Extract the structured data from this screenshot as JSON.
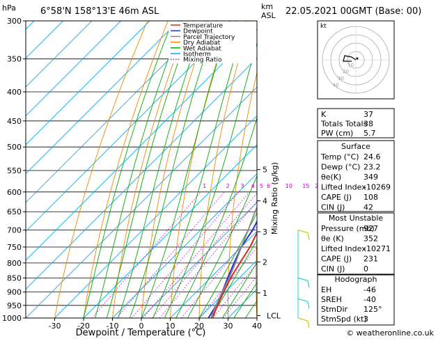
{
  "header": {
    "hpa_unit": "hPa",
    "location": "6°58'N 158°13'E 46m ASL",
    "km_unit": "km",
    "asl_unit": "ASL",
    "datetime": "22.05.2021 00GMT (Base: 00)"
  },
  "chart_data": {
    "type": "line",
    "title": "",
    "xlabel": "Dewpoint / Temperature (°C)",
    "ylabel": "hPa",
    "mixing_ratio_axis_label": "Mixing Ratio (g/kg)",
    "x_ticks": [
      -30,
      -20,
      -10,
      0,
      10,
      20,
      30,
      40
    ],
    "y_ticks": [
      300,
      350,
      400,
      450,
      500,
      550,
      600,
      650,
      700,
      750,
      800,
      850,
      900,
      950,
      1000
    ],
    "km_ticks": [
      {
        "km": "1",
        "p": 903
      },
      {
        "km": "2",
        "p": 797
      },
      {
        "km": "3",
        "p": 705
      },
      {
        "km": "4",
        "p": 622
      },
      {
        "km": "5",
        "p": 548
      }
    ],
    "lcl_label": "LCL",
    "lcl_p": 990,
    "mixing_ratio_values": [
      "1",
      "2",
      "3",
      "4",
      "5",
      "6",
      "10",
      "15",
      "20",
      "25"
    ],
    "xlim": [
      -40,
      40
    ],
    "ylim": [
      1000,
      300
    ],
    "skew": 1.0,
    "legend": {
      "position": "top-right",
      "entries": [
        {
          "label": "Temperature",
          "color": "#dd2222",
          "style": "solid"
        },
        {
          "label": "Dewpoint",
          "color": "#2233cc",
          "style": "solid"
        },
        {
          "label": "Parcel Trajectory",
          "color": "#888888",
          "style": "solid"
        },
        {
          "label": "Dry Adiabat",
          "color": "#ee8800",
          "style": "solid"
        },
        {
          "label": "Wet Adiabat",
          "color": "#00aa00",
          "style": "solid"
        },
        {
          "label": "Isotherm",
          "color": "#00aaee",
          "style": "solid"
        },
        {
          "label": "Mixing Ratio",
          "color": "#cc00cc",
          "style": "dotted"
        }
      ]
    },
    "series": [
      {
        "name": "Temperature",
        "color": "#dd2222",
        "points": [
          [
            24.6,
            1000
          ],
          [
            22,
            950
          ],
          [
            19.5,
            900
          ],
          [
            17,
            850
          ],
          [
            15,
            800
          ],
          [
            13,
            750
          ],
          [
            10,
            700
          ],
          [
            7,
            650
          ],
          [
            3,
            600
          ],
          [
            -2,
            575
          ],
          [
            2,
            560
          ],
          [
            -1,
            500
          ],
          [
            -6,
            450
          ],
          [
            -12,
            400
          ],
          [
            -18,
            350
          ],
          [
            -26,
            300
          ]
        ]
      },
      {
        "name": "Dewpoint",
        "color": "#2233cc",
        "points": [
          [
            23.2,
            1000
          ],
          [
            21.5,
            950
          ],
          [
            19,
            900
          ],
          [
            16,
            850
          ],
          [
            13,
            800
          ],
          [
            10,
            750
          ],
          [
            8,
            700
          ],
          [
            5,
            650
          ],
          [
            0,
            610
          ],
          [
            -1,
            580
          ],
          [
            -2,
            550
          ],
          [
            -5,
            500
          ],
          [
            -9,
            450
          ],
          [
            -15,
            400
          ],
          [
            -22,
            350
          ],
          [
            -30,
            300
          ]
        ]
      },
      {
        "name": "Parcel Trajectory",
        "color": "#888888",
        "points": [
          [
            24.6,
            1000
          ],
          [
            23.5,
            990
          ],
          [
            21.5,
            950
          ],
          [
            19,
            900
          ],
          [
            16.5,
            850
          ],
          [
            13.5,
            800
          ],
          [
            10,
            750
          ],
          [
            6.5,
            700
          ],
          [
            2.5,
            650
          ],
          [
            -1,
            600
          ],
          [
            -5,
            550
          ],
          [
            -9.5,
            500
          ],
          [
            -15,
            450
          ],
          [
            -21,
            400
          ],
          [
            -28,
            350
          ],
          [
            -36,
            300
          ]
        ]
      }
    ]
  },
  "hodograph": {
    "label": "kt",
    "ring_labels": [
      "10",
      "20",
      "30",
      "40"
    ]
  },
  "indices": {
    "rows": [
      {
        "label": "K",
        "value": "37"
      },
      {
        "label": "Totals Totals",
        "value": "38"
      },
      {
        "label": "PW (cm)",
        "value": "5.7"
      }
    ]
  },
  "surface": {
    "title": "Surface",
    "rows": [
      {
        "label": "Temp (°C)",
        "value": "24.6"
      },
      {
        "label": "Dewp (°C)",
        "value": "23.2"
      },
      {
        "label": "θe(K)",
        "value": "349"
      },
      {
        "label": "Lifted Index",
        "value": "-10269"
      },
      {
        "label": "CAPE (J)",
        "value": "108"
      },
      {
        "label": "CIN (J)",
        "value": "42"
      }
    ]
  },
  "most_unstable": {
    "title": "Most Unstable",
    "rows": [
      {
        "label": "Pressure (mb)",
        "value": "927"
      },
      {
        "label": "θe (K)",
        "value": "352"
      },
      {
        "label": "Lifted Index",
        "value": "-10271"
      },
      {
        "label": "CAPE (J)",
        "value": "231"
      },
      {
        "label": "CIN (J)",
        "value": "0"
      }
    ]
  },
  "hodograph_box": {
    "title": "Hodograph",
    "rows": [
      {
        "label": "EH",
        "value": "-46"
      },
      {
        "label": "SREH",
        "value": "-40"
      },
      {
        "label": "StmDir",
        "value": "125°"
      },
      {
        "label": "StmSpd (kt)",
        "value": "3"
      }
    ]
  },
  "footer": {
    "copyright": "© weatheronline.co.uk"
  },
  "colors": {
    "temperature": "#dd2222",
    "dewpoint": "#2233cc",
    "parcel": "#888888",
    "dry_adiabat": "#ee8800",
    "wet_adiabat": "#00aa00",
    "isotherm": "#00aaee",
    "mixing_ratio": "#cc00cc",
    "wind_barb": "#33cccc",
    "barb_low": "#cccc00"
  }
}
